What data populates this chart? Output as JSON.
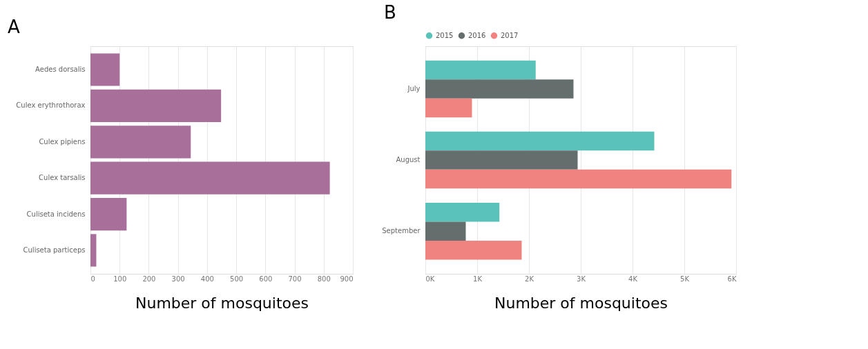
{
  "chart_data": [
    {
      "type": "bar",
      "orientation": "horizontal",
      "title": "A",
      "xlabel": "Number of mosquitoes",
      "categories": [
        "Aedes dorsalis",
        "Culex erythrothorax",
        "Culex pipiens",
        "Culex tarsalis",
        "Culiseta incidens",
        "Culiseta particeps"
      ],
      "values": [
        100,
        448,
        344,
        821,
        124,
        20
      ],
      "color": "#a86f9a",
      "xlim": [
        0,
        900
      ],
      "xticks": [
        0,
        100,
        200,
        300,
        400,
        500,
        600,
        700,
        800,
        900
      ],
      "grid": "x"
    },
    {
      "type": "bar",
      "orientation": "horizontal",
      "title": "B",
      "xlabel": "Number of mosquitoes",
      "categories": [
        "July",
        "August",
        "September"
      ],
      "series": [
        {
          "name": "2015",
          "color": "#5bc2b9",
          "values": [
            2130,
            4420,
            1430
          ]
        },
        {
          "name": "2016",
          "color": "#636e6d",
          "values": [
            2860,
            2940,
            780
          ]
        },
        {
          "name": "2017",
          "color": "#f08280",
          "values": [
            900,
            5910,
            1860
          ]
        }
      ],
      "xlim": [
        0,
        6000
      ],
      "xticks": [
        {
          "value": 0,
          "label": "0K"
        },
        {
          "value": 1000,
          "label": "1K"
        },
        {
          "value": 2000,
          "label": "2K"
        },
        {
          "value": 3000,
          "label": "3K"
        },
        {
          "value": 4000,
          "label": "4K"
        },
        {
          "value": 5000,
          "label": "5K"
        },
        {
          "value": 6000,
          "label": "6K"
        }
      ],
      "grid": "x",
      "legend": "top left"
    }
  ]
}
